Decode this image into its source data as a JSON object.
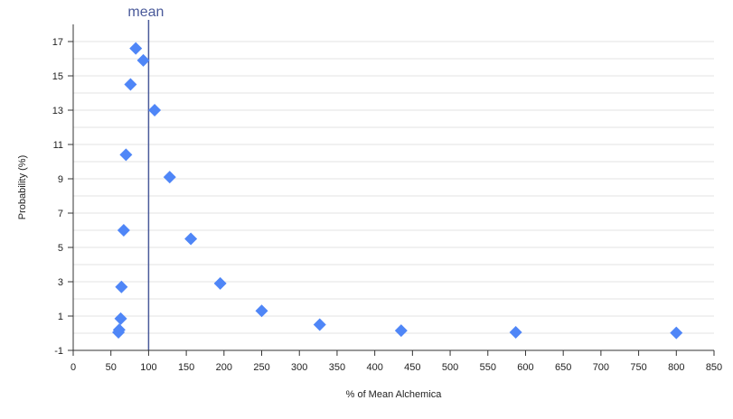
{
  "chart_data": {
    "type": "scatter",
    "title": "",
    "xlabel": "% of Mean Alchemica",
    "ylabel": "Probability (%)",
    "xlim": [
      0,
      850
    ],
    "ylim": [
      -1,
      18
    ],
    "x_ticks": [
      0,
      50,
      100,
      150,
      200,
      250,
      300,
      350,
      400,
      450,
      500,
      550,
      600,
      650,
      700,
      750,
      800,
      850
    ],
    "y_ticks": [
      -1,
      1,
      3,
      5,
      7,
      9,
      11,
      13,
      15,
      17
    ],
    "grid": "horizontal",
    "marker": "diamond",
    "colors": {
      "points": "#4f86f7",
      "mean_line": "#4a5a9a",
      "grid": "#e3e3e3",
      "axis": "#333333"
    },
    "series": [
      {
        "x": [
          83,
          93,
          76,
          108,
          70,
          128,
          67,
          156,
          64,
          195,
          250,
          63,
          327,
          61,
          60,
          435,
          587,
          800
        ],
        "y": [
          16.6,
          15.9,
          14.5,
          13.0,
          10.4,
          9.1,
          6.0,
          5.5,
          2.7,
          2.9,
          1.3,
          0.85,
          0.5,
          0.2,
          0.05,
          0.15,
          0.05,
          0.02
        ]
      }
    ],
    "annotations": [
      {
        "type": "vline",
        "x": 100,
        "label": "mean"
      }
    ]
  }
}
